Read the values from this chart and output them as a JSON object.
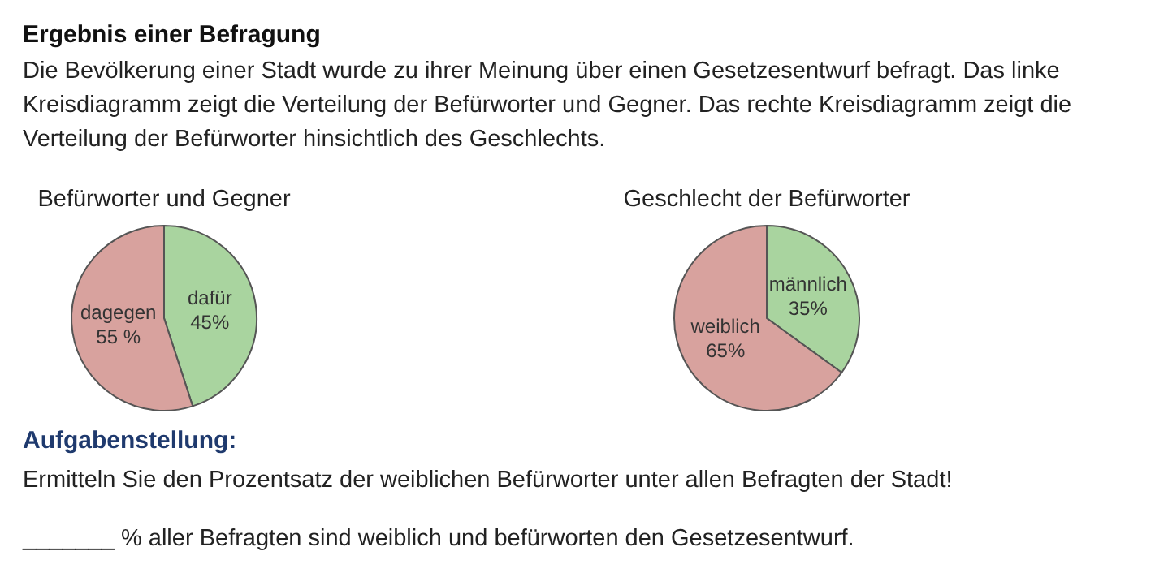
{
  "chart_data": [
    {
      "type": "other",
      "title": "Ergebnis einer Befragung",
      "subtitle": "Die Bevölkerung einer Stadt wurde zu ihrer Meinung über einen Gesetzesentwurf befragt. Das linke Kreisdiagramm zeigt die Verteilung der Befürworter und Gegner. Das rechte Kreisdiagramm zeigt die Verteilung der Befürworter hinsichtlich des Geschlechts."
    },
    {
      "type": "pie",
      "title": "Befürworter und Gegner",
      "categories": [
        "dafür",
        "dagegen"
      ],
      "values": [
        45,
        55
      ],
      "colors": [
        "#a9d49f",
        "#d8a29e"
      ],
      "value_labels": [
        "45%",
        "55 %"
      ]
    },
    {
      "type": "pie",
      "title": "Geschlecht der Befürworter",
      "categories": [
        "männlich",
        "weiblich"
      ],
      "values": [
        35,
        65
      ],
      "colors": [
        "#a9d49f",
        "#d8a29e"
      ],
      "value_labels": [
        "35%",
        "65%"
      ]
    },
    {
      "type": "other",
      "title": "Aufgabenstellung:",
      "annotations": [
        "Ermitteln Sie den Prozentsatz der weiblichen Befürworter unter allen Befragten der Stadt!",
        "_______ % aller Befragten sind weiblich und befürworten den Gesetzesentwurf."
      ]
    }
  ]
}
